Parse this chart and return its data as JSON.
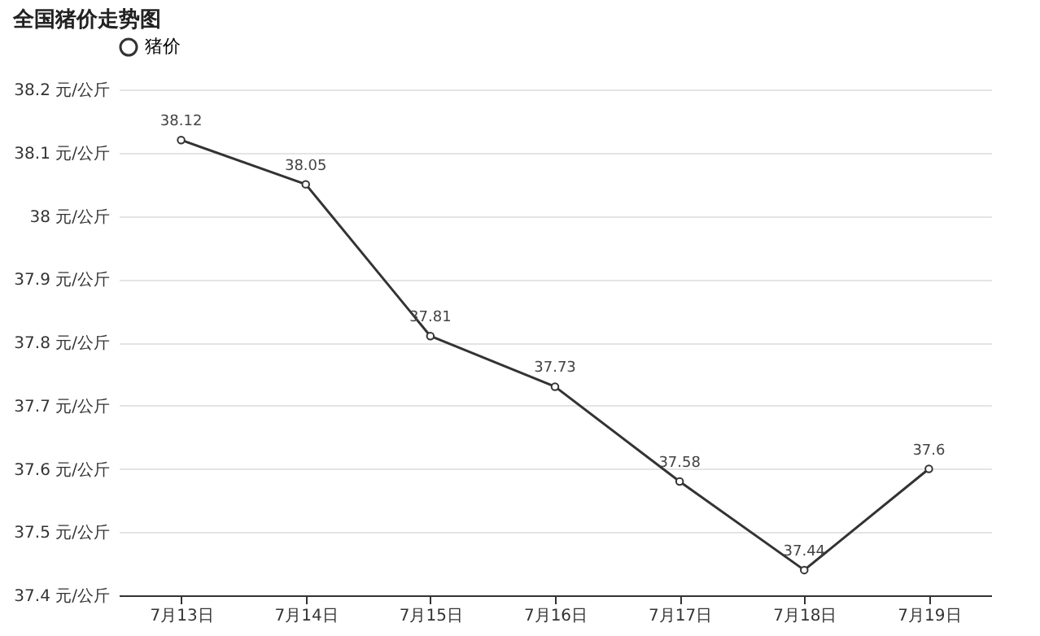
{
  "chart_data": {
    "type": "line",
    "title": "全国猪价走势图",
    "categories": [
      "7月13日",
      "7月14日",
      "7月15日",
      "7月16日",
      "7月17日",
      "7月18日",
      "7月19日"
    ],
    "series": [
      {
        "name": "猪价",
        "color": "#333333",
        "values": [
          38.12,
          38.05,
          37.81,
          37.73,
          37.58,
          37.44,
          37.6
        ]
      }
    ],
    "ylim": [
      37.4,
      38.2
    ],
    "yticks": [
      {
        "value": 37.4,
        "label": "37.4 元/公斤"
      },
      {
        "value": 37.5,
        "label": "37.5 元/公斤"
      },
      {
        "value": 37.6,
        "label": "37.6 元/公斤"
      },
      {
        "value": 37.7,
        "label": "37.7 元/公斤"
      },
      {
        "value": 37.8,
        "label": "37.8 元/公斤"
      },
      {
        "value": 37.9,
        "label": "37.9 元/公斤"
      },
      {
        "value": 38,
        "label": "38 元/公斤"
      },
      {
        "value": 38.1,
        "label": "38.1 元/公斤"
      },
      {
        "value": 38.2,
        "label": "38.2 元/公斤"
      }
    ],
    "grid": "y",
    "legend": "top",
    "marker": "circle",
    "line_style": "solid",
    "data_labels": true
  }
}
